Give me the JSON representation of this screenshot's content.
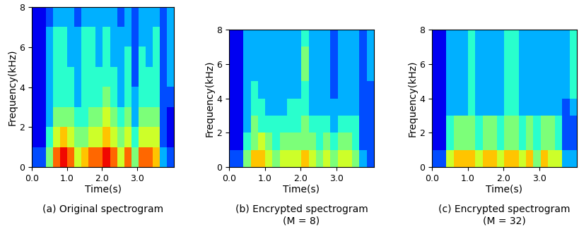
{
  "chart_data": [
    {
      "type": "heatmap",
      "title": "(a) Original spectrogram",
      "xlabel": "Time(s)",
      "ylabel": "Frequency(kHz)",
      "xlim": [
        0,
        4.05
      ],
      "ylim": [
        0,
        8
      ],
      "xticks": [
        0.0,
        1.0,
        2.0,
        3.0
      ],
      "yticks": [
        0,
        2,
        4,
        6,
        8
      ],
      "color": "jet",
      "cell_range": [
        0,
        10
      ],
      "cells": [
        [
          2,
          2,
          5,
          8,
          9,
          8,
          6,
          7,
          8,
          8,
          9,
          8,
          6,
          8,
          5,
          8,
          8,
          7,
          3,
          2
        ],
        [
          1,
          1,
          4,
          6,
          7,
          6,
          5,
          5,
          6,
          6,
          7,
          6,
          5,
          6,
          4,
          6,
          6,
          6,
          2,
          1
        ],
        [
          1,
          1,
          3,
          5,
          5,
          5,
          4,
          4,
          5,
          5,
          6,
          5,
          4,
          5,
          3,
          5,
          5,
          5,
          2,
          1
        ],
        [
          1,
          1,
          3,
          4,
          4,
          4,
          3,
          4,
          4,
          4,
          5,
          4,
          3,
          4,
          3,
          4,
          4,
          4,
          2,
          2
        ],
        [
          1,
          1,
          3,
          4,
          4,
          4,
          3,
          4,
          4,
          4,
          4,
          4,
          3,
          4,
          2,
          4,
          4,
          4,
          2,
          3
        ],
        [
          1,
          1,
          3,
          4,
          4,
          3,
          3,
          4,
          4,
          3,
          4,
          3,
          3,
          4,
          2,
          4,
          3,
          4,
          2,
          3
        ],
        [
          1,
          1,
          3,
          4,
          4,
          3,
          3,
          4,
          4,
          3,
          4,
          3,
          3,
          3,
          2,
          3,
          3,
          4,
          2,
          3
        ],
        [
          1,
          1,
          2,
          3,
          3,
          3,
          2,
          3,
          3,
          3,
          3,
          3,
          2,
          3,
          2,
          3,
          3,
          3,
          2,
          3
        ]
      ]
    },
    {
      "type": "heatmap",
      "title": "(b) Encrypted spectrogram\n(M = 8)",
      "xlabel": "Time(s)",
      "ylabel": "Frequency(kHz)",
      "xlim": [
        0,
        4.05
      ],
      "ylim": [
        0,
        8
      ],
      "xticks": [
        0.0,
        1.0,
        2.0,
        3.0
      ],
      "yticks": [
        0,
        2,
        4,
        6,
        8
      ],
      "color": "jet",
      "cell_range": [
        0,
        10
      ],
      "cells": [
        [
          2,
          2,
          5,
          7,
          7,
          6,
          5,
          6,
          6,
          6,
          7,
          6,
          5,
          6,
          5,
          6,
          6,
          5,
          3,
          2
        ],
        [
          1,
          1,
          4,
          5,
          6,
          5,
          4,
          5,
          5,
          5,
          5,
          5,
          4,
          5,
          4,
          5,
          5,
          4,
          2,
          2
        ],
        [
          1,
          1,
          3,
          5,
          4,
          4,
          4,
          4,
          4,
          4,
          5,
          4,
          4,
          4,
          3,
          4,
          4,
          4,
          2,
          2
        ],
        [
          1,
          1,
          3,
          4,
          4,
          3,
          3,
          3,
          4,
          4,
          4,
          3,
          3,
          3,
          3,
          3,
          3,
          3,
          2,
          2
        ],
        [
          1,
          1,
          3,
          4,
          3,
          3,
          3,
          3,
          3,
          3,
          4,
          3,
          3,
          3,
          2,
          3,
          3,
          3,
          2,
          2
        ],
        [
          1,
          1,
          3,
          3,
          3,
          3,
          3,
          3,
          3,
          3,
          5,
          3,
          3,
          3,
          2,
          3,
          3,
          3,
          2,
          3
        ],
        [
          1,
          1,
          3,
          3,
          3,
          3,
          3,
          3,
          3,
          3,
          5,
          3,
          3,
          3,
          2,
          3,
          3,
          3,
          2,
          3
        ],
        [
          1,
          1,
          3,
          3,
          3,
          3,
          3,
          3,
          3,
          3,
          4,
          3,
          3,
          3,
          2,
          3,
          3,
          3,
          2,
          3
        ]
      ]
    },
    {
      "type": "heatmap",
      "title": "(c) Encrypted spectrogram\n(M = 32)",
      "xlabel": "Time(s)",
      "ylabel": "Frequency(kHz)",
      "xlim": [
        0,
        4.05
      ],
      "ylim": [
        0,
        8
      ],
      "xticks": [
        0.0,
        1.0,
        2.0,
        3.0
      ],
      "yticks": [
        0,
        2,
        4,
        6,
        8
      ],
      "color": "jet",
      "cell_range": [
        0,
        10
      ],
      "cells": [
        [
          2,
          2,
          6,
          7,
          7,
          7,
          6,
          7,
          7,
          6,
          7,
          7,
          6,
          7,
          5,
          7,
          6,
          6,
          3,
          3
        ],
        [
          1,
          1,
          4,
          5,
          5,
          5,
          4,
          5,
          5,
          4,
          5,
          5,
          4,
          5,
          4,
          5,
          5,
          4,
          2,
          2
        ],
        [
          1,
          1,
          4,
          5,
          5,
          5,
          4,
          5,
          5,
          4,
          5,
          5,
          4,
          5,
          4,
          5,
          5,
          4,
          2,
          2
        ],
        [
          1,
          1,
          3,
          3,
          3,
          4,
          3,
          3,
          3,
          3,
          4,
          4,
          3,
          3,
          3,
          3,
          3,
          3,
          2,
          3
        ],
        [
          1,
          1,
          3,
          3,
          3,
          4,
          3,
          3,
          3,
          3,
          4,
          4,
          3,
          3,
          3,
          3,
          3,
          3,
          3,
          4
        ],
        [
          1,
          1,
          3,
          3,
          3,
          4,
          3,
          3,
          3,
          3,
          4,
          4,
          3,
          3,
          3,
          3,
          3,
          3,
          3,
          4
        ],
        [
          1,
          1,
          3,
          3,
          3,
          4,
          3,
          3,
          3,
          3,
          4,
          4,
          3,
          3,
          3,
          3,
          3,
          3,
          3,
          4
        ],
        [
          1,
          1,
          3,
          3,
          3,
          4,
          3,
          3,
          3,
          3,
          4,
          4,
          3,
          3,
          3,
          3,
          3,
          3,
          3,
          4
        ]
      ]
    }
  ]
}
